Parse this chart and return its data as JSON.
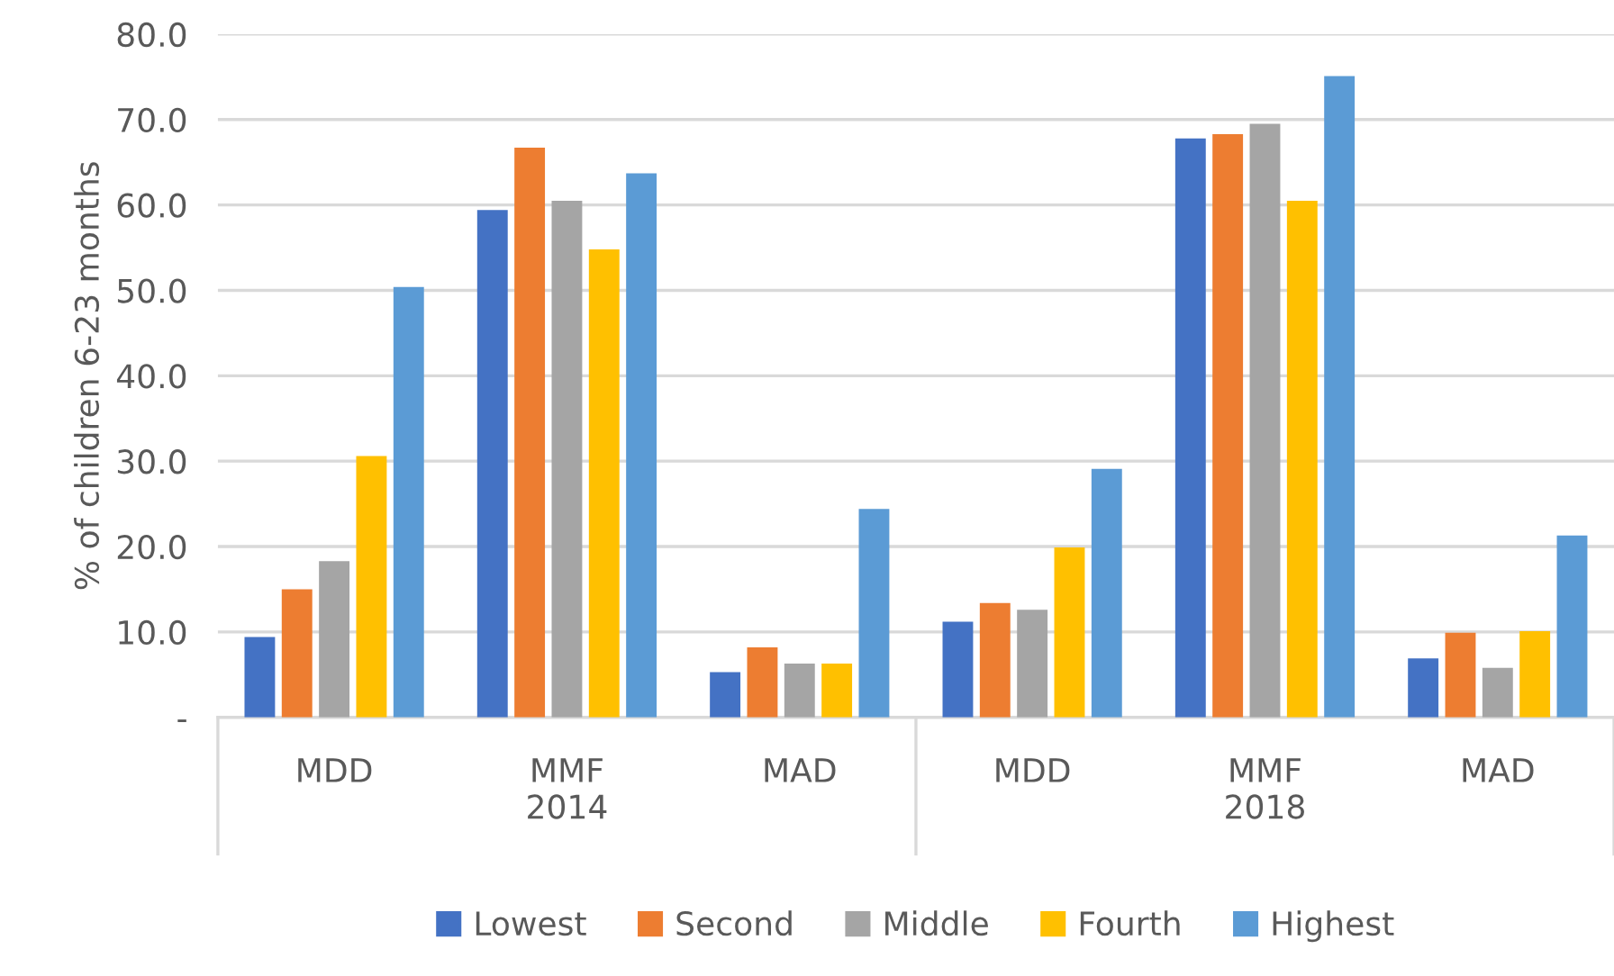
{
  "chart_data": {
    "type": "bar",
    "ylabel": "% of children 6-23 months",
    "categories": [
      "MDD",
      "MMF",
      "MAD",
      "MDD",
      "MMF",
      "MAD"
    ],
    "annotations": [
      "2014",
      "2018"
    ],
    "series": [
      {
        "name": "Lowest",
        "color": "#4472c4",
        "values": [
          9.4,
          59.4,
          5.3,
          11.2,
          67.8,
          6.9
        ]
      },
      {
        "name": "Second",
        "color": "#ed7d31",
        "values": [
          15.0,
          66.7,
          8.2,
          13.4,
          68.3,
          9.9
        ]
      },
      {
        "name": "Middle",
        "color": "#a5a5a5",
        "values": [
          18.3,
          60.5,
          6.3,
          12.6,
          69.5,
          5.8
        ]
      },
      {
        "name": "Fourth",
        "color": "#ffc000",
        "values": [
          30.6,
          54.8,
          6.3,
          19.9,
          60.5,
          10.1
        ]
      },
      {
        "name": "Highest",
        "color": "#5b9bd5",
        "values": [
          50.4,
          63.7,
          24.4,
          29.1,
          75.1,
          21.3
        ]
      }
    ],
    "ylim": [
      0,
      80
    ],
    "yticks": [
      {
        "value": 0,
        "label": "-"
      },
      {
        "value": 10,
        "label": "10.0"
      },
      {
        "value": 20,
        "label": "20.0"
      },
      {
        "value": 30,
        "label": "30.0"
      },
      {
        "value": 40,
        "label": "40.0"
      },
      {
        "value": 50,
        "label": "50.0"
      },
      {
        "value": 60,
        "label": "60.0"
      },
      {
        "value": 70,
        "label": "70.0"
      },
      {
        "value": 80,
        "label": "80.0"
      }
    ],
    "grid": "y",
    "legend": "bottom"
  }
}
